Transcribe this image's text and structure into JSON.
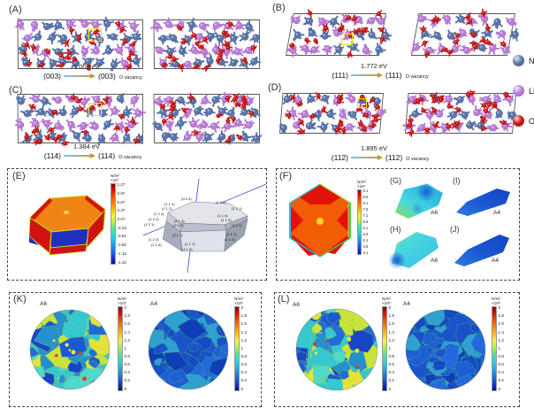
{
  "reactions": [
    {
      "label": "(A)",
      "energy": "1.008 eV",
      "from": "(003)",
      "to": "(003)",
      "subscript": "O vacancy"
    },
    {
      "label": "(B)",
      "energy": "1.772 eV",
      "from": "(111)",
      "to": "(111)",
      "subscript": "O vacancy"
    },
    {
      "label": "(C)",
      "energy": "1.384 eV",
      "from": "(114)",
      "to": "(114)",
      "subscript": "O vacancy"
    },
    {
      "label": "(D)",
      "energy": "1.895 eV",
      "from": "(112)",
      "to": "(112)",
      "subscript": "O vacancy"
    }
  ],
  "legend": {
    "items": [
      {
        "label": "Ni",
        "color": "#6279ac"
      },
      {
        "label": "Li",
        "color": "#bd82da"
      },
      {
        "label": "O",
        "color": "#d21a1a"
      }
    ]
  },
  "panelE": {
    "label": "(E)",
    "colorbar": {
      "unit": "N/m²",
      "scale": "×10⁷",
      "ticks": [
        "1.27",
        "0.97",
        "0.67",
        "0.37",
        "0.07",
        "-0.23",
        "-0.52",
        "-0.82",
        "-1.12",
        "-1.42"
      ]
    },
    "facets": [
      "(0 0 3)",
      "(1 1 4)",
      "(1 1 2)",
      "(1 2 4)",
      "(1 2 2)",
      "(1 2 1)",
      "(1 2 2)",
      "(1 2 1)",
      "(1 1 4)",
      "(1 1 2)",
      "(1 1 1)",
      "(2 1 4)",
      "(2 1 2)",
      "(2 1 1)",
      "(1 1 1)",
      "(1 1 2)",
      "(1 2 2)",
      "(1 2 4)",
      "(1 1 1)",
      "(1 1 3)"
    ]
  },
  "panelF": {
    "label": "(F)",
    "colorbar": {
      "unit": "N/m²",
      "scale": "×10⁷",
      "ticks": [
        "9.1",
        "8.6",
        "8.1",
        "7.6",
        "7.1",
        "6.6",
        "6.1",
        "5.6",
        "5.1",
        "4.6",
        "4.1"
      ]
    }
  },
  "panelsSmall": {
    "G": {
      "label": "(G)",
      "tag": "A6"
    },
    "H": {
      "label": "(H)",
      "tag": "A6"
    },
    "I": {
      "label": "(I)",
      "tag": "A4"
    },
    "J": {
      "label": "(J)",
      "tag": "A4"
    }
  },
  "panelK": {
    "label": "(K)",
    "maps": [
      {
        "tag": "A6",
        "colorbar": {
          "unit": "N/m²",
          "scale": "×10⁸",
          "ticks": [
            "2",
            "1.8",
            "1.6",
            "1.4",
            "1.2",
            "1",
            "0.8",
            "0.6",
            "0.4",
            "0.2",
            "0"
          ]
        }
      },
      {
        "tag": "A4",
        "colorbar": {
          "unit": "N/m²",
          "scale": "×10⁸",
          "ticks": [
            "2",
            "1.8",
            "1.6",
            "1.4",
            "1.2",
            "1",
            "0.8",
            "0.6",
            "0.4",
            "0.2",
            "0"
          ]
        }
      }
    ]
  },
  "panelL": {
    "label": "(L)",
    "maps": [
      {
        "tag": "A6",
        "colorbar": {
          "unit": "N/m²",
          "scale": "×10⁸",
          "ticks": [
            "2",
            "1.8",
            "1.6",
            "1.4",
            "1.2",
            "1",
            "0.8",
            "0.6",
            "0.4",
            "0.2",
            "0"
          ]
        }
      },
      {
        "tag": "A4",
        "colorbar": {
          "unit": "N/m²",
          "scale": "×10⁸",
          "ticks": [
            "2",
            "1.8",
            "1.6",
            "1.4",
            "1.2",
            "1",
            "0.8",
            "0.6",
            "0.4",
            "0.2",
            "0"
          ]
        }
      }
    ]
  }
}
